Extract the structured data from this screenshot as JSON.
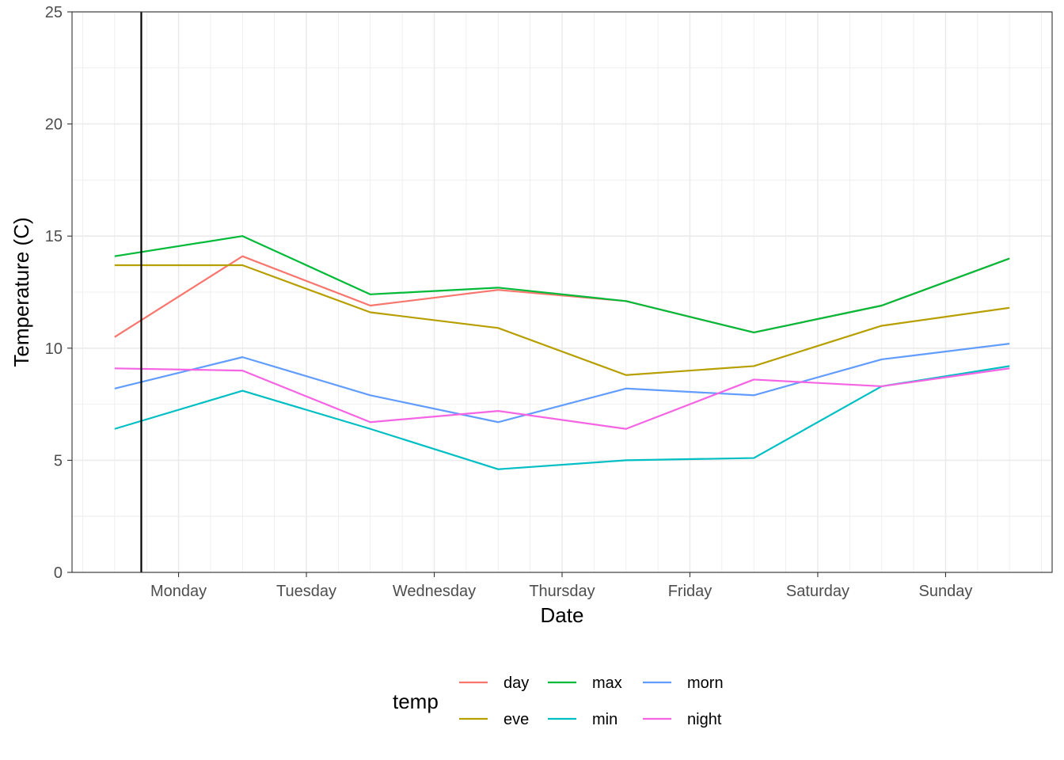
{
  "chart_data": {
    "type": "line",
    "xlabel": "Date",
    "ylabel": "Temperature (C)",
    "ylim": [
      0,
      25
    ],
    "yticks": [
      0,
      5,
      10,
      15,
      20,
      25
    ],
    "x_dates": [
      "2023-10-01 12:00",
      "2023-10-02 12:00",
      "2023-10-03 12:00",
      "2023-10-04 12:00",
      "2023-10-05 12:00",
      "2023-10-06 12:00",
      "2023-10-07 12:00",
      "2023-10-08 12:00"
    ],
    "xlim_dates": [
      "2023-10-01 04:00",
      "2023-10-08 20:00"
    ],
    "xticks": [
      {
        "date": "2023-10-02 00:00",
        "label": "Monday"
      },
      {
        "date": "2023-10-03 00:00",
        "label": "Tuesday"
      },
      {
        "date": "2023-10-04 00:00",
        "label": "Wednesday"
      },
      {
        "date": "2023-10-05 00:00",
        "label": "Thursday"
      },
      {
        "date": "2023-10-06 00:00",
        "label": "Friday"
      },
      {
        "date": "2023-10-07 00:00",
        "label": "Saturday"
      },
      {
        "date": "2023-10-08 00:00",
        "label": "Sunday"
      }
    ],
    "vline_date": "2023-10-01 17:00",
    "series": [
      {
        "name": "day",
        "color": "#F8766D",
        "values": [
          10.5,
          14.1,
          11.9,
          12.6,
          12.1,
          10.7,
          11.9,
          14.0
        ]
      },
      {
        "name": "eve",
        "color": "#B79F00",
        "values": [
          13.7,
          13.7,
          11.6,
          10.9,
          8.8,
          9.2,
          11.0,
          11.8
        ]
      },
      {
        "name": "max",
        "color": "#00BA38",
        "values": [
          14.1,
          15.0,
          12.4,
          12.7,
          12.1,
          10.7,
          11.9,
          14.0
        ]
      },
      {
        "name": "min",
        "color": "#00BFC4",
        "values": [
          6.4,
          8.1,
          6.4,
          4.6,
          5.0,
          5.1,
          8.3,
          9.2
        ]
      },
      {
        "name": "morn",
        "color": "#619CFF",
        "values": [
          8.2,
          9.6,
          7.9,
          6.7,
          8.2,
          7.9,
          9.5,
          10.2
        ]
      },
      {
        "name": "night",
        "color": "#F564E3",
        "values": [
          9.1,
          9.0,
          6.7,
          7.2,
          6.4,
          8.6,
          8.3,
          9.1
        ]
      }
    ],
    "legend": {
      "title": "temp",
      "position": "bottom",
      "columns": [
        [
          "day",
          "eve"
        ],
        [
          "max",
          "min"
        ],
        [
          "morn",
          "night"
        ]
      ]
    },
    "grid": true
  }
}
